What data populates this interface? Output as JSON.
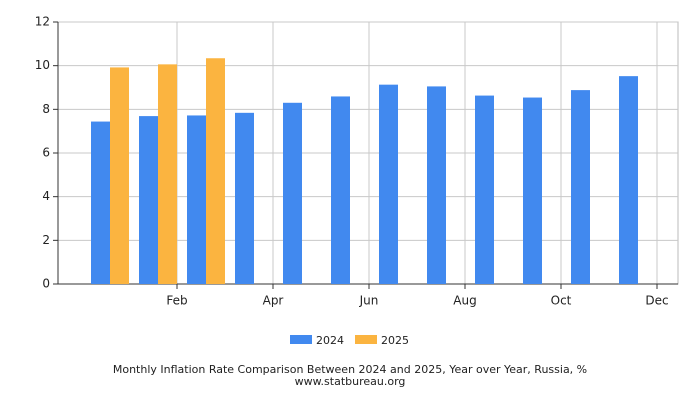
{
  "chart_data": {
    "type": "bar",
    "title": "Monthly Inflation Rate Comparison Between 2024 and 2025, Year over Year, Russia, %",
    "subtitle": "www.statbureau.org",
    "categories": [
      null,
      "Feb",
      null,
      "Apr",
      null,
      "Jun",
      null,
      "Aug",
      null,
      "Oct",
      null,
      "Dec"
    ],
    "series": [
      {
        "name": "2024",
        "color": "#4189ef",
        "values": [
          7.44,
          7.69,
          7.72,
          7.84,
          8.3,
          8.59,
          9.13,
          9.05,
          8.63,
          8.54,
          8.88,
          9.52
        ]
      },
      {
        "name": "2025",
        "color": "#fbb440",
        "values": [
          9.92,
          10.06,
          10.34,
          null,
          null,
          null,
          null,
          null,
          null,
          null,
          null,
          null
        ]
      }
    ],
    "ylim": [
      0,
      12
    ],
    "yticks": [
      0,
      2,
      4,
      6,
      8,
      10,
      12
    ],
    "grid": true,
    "legend": "bottom"
  }
}
